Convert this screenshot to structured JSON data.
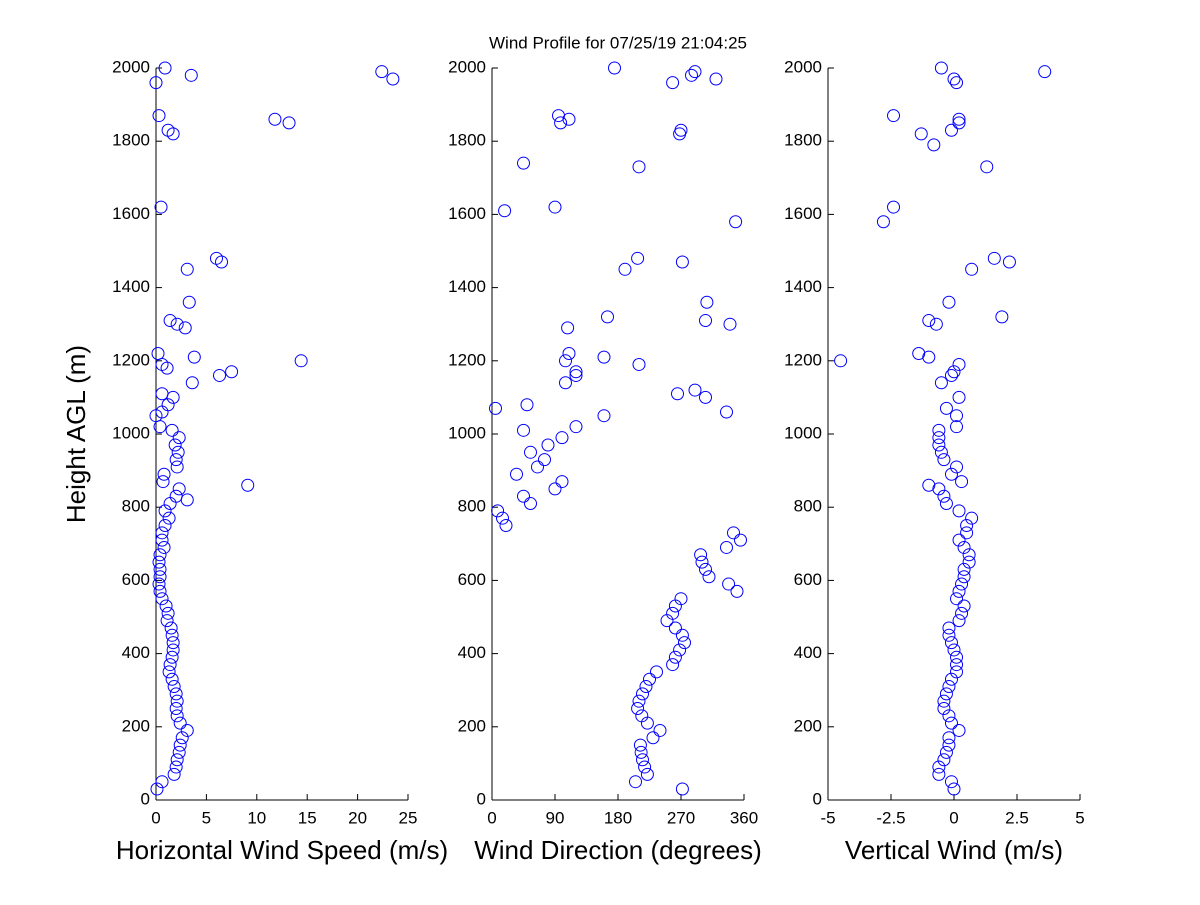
{
  "title": "Wind Profile for  07/25/19 21:04:25",
  "chart_data": [
    {
      "type": "scatter",
      "xlabel": "Horizontal Wind Speed (m/s)",
      "ylabel": "Height AGL (m)",
      "color": "#0000ff",
      "xlim": [
        0,
        25
      ],
      "xticks": [
        0,
        5,
        10,
        15,
        20,
        25
      ],
      "ylim": [
        0,
        2000
      ],
      "yticks": [
        0,
        200,
        400,
        600,
        800,
        1000,
        1200,
        1400,
        1600,
        1800,
        2000
      ],
      "x": [
        0.1,
        0.6,
        1.8,
        2.0,
        2.1,
        2.3,
        2.4,
        2.6,
        3.1,
        2.4,
        2.1,
        2.0,
        2.1,
        2.0,
        1.8,
        1.6,
        1.3,
        1.4,
        1.6,
        1.7,
        1.7,
        1.6,
        1.5,
        1.1,
        1.2,
        1.0,
        0.6,
        0.4,
        0.3,
        0.4,
        0.4,
        0.3,
        0.4,
        0.8,
        0.6,
        0.6,
        0.9,
        1.3,
        0.9,
        1.4,
        2.0,
        2.3,
        0.7,
        0.8,
        2.1,
        2.0,
        2.2,
        1.9,
        2.3,
        9.1,
        3.1,
        1.6,
        0.4,
        0.0,
        0.6,
        1.2,
        1.7,
        0.6,
        3.6,
        6.3,
        7.5,
        1.1,
        0.6,
        14.4,
        3.8,
        0.2,
        2.9,
        2.1,
        1.4,
        3.3,
        3.1,
        6.5,
        6.0,
        0.5,
        1.7,
        1.2,
        13.2,
        11.8,
        0.3,
        0.0,
        23.5,
        3.5,
        22.4,
        0.9
      ],
      "y": [
        30,
        50,
        70,
        90,
        110,
        130,
        150,
        170,
        190,
        210,
        230,
        250,
        270,
        290,
        310,
        330,
        350,
        370,
        390,
        410,
        430,
        450,
        470,
        490,
        510,
        530,
        550,
        570,
        590,
        610,
        630,
        650,
        670,
        690,
        710,
        730,
        750,
        770,
        790,
        810,
        830,
        850,
        870,
        890,
        910,
        930,
        950,
        970,
        990,
        860,
        820,
        1010,
        1020,
        1050,
        1060,
        1080,
        1100,
        1110,
        1140,
        1160,
        1170,
        1180,
        1190,
        1200,
        1210,
        1220,
        1290,
        1300,
        1310,
        1360,
        1450,
        1470,
        1480,
        1620,
        1820,
        1830,
        1850,
        1860,
        1870,
        1960,
        1970,
        1980,
        1990,
        2000
      ]
    },
    {
      "type": "scatter",
      "xlabel": "Wind Direction (degrees)",
      "color": "#0000ff",
      "xlim": [
        0,
        360
      ],
      "xticks": [
        0,
        90,
        180,
        270,
        360
      ],
      "ylim": [
        0,
        2000
      ],
      "yticks": [
        0,
        200,
        400,
        600,
        800,
        1000,
        1200,
        1400,
        1600,
        1800,
        2000
      ],
      "x": [
        272,
        205,
        222,
        218,
        215,
        213,
        212,
        230,
        240,
        222,
        214,
        208,
        210,
        215,
        220,
        225,
        235,
        258,
        262,
        268,
        275,
        272,
        262,
        250,
        258,
        262,
        270,
        350,
        338,
        310,
        305,
        300,
        298,
        335,
        355,
        345,
        20,
        15,
        8,
        55,
        45,
        90,
        100,
        35,
        65,
        75,
        55,
        80,
        100,
        45,
        120,
        160,
        335,
        5,
        50,
        305,
        265,
        290,
        105,
        120,
        120,
        210,
        105,
        160,
        110,
        108,
        340,
        305,
        165,
        307,
        190,
        272,
        208,
        348,
        18,
        90,
        210,
        45,
        268,
        270,
        98,
        110,
        95,
        258,
        320,
        285,
        290,
        175
      ],
      "y": [
        30,
        50,
        70,
        90,
        110,
        130,
        150,
        170,
        190,
        210,
        230,
        250,
        270,
        290,
        310,
        330,
        350,
        370,
        390,
        410,
        430,
        450,
        470,
        490,
        510,
        530,
        550,
        570,
        590,
        610,
        630,
        650,
        670,
        690,
        710,
        730,
        750,
        770,
        790,
        810,
        830,
        850,
        870,
        890,
        910,
        930,
        950,
        970,
        990,
        1010,
        1020,
        1050,
        1060,
        1070,
        1080,
        1100,
        1110,
        1120,
        1140,
        1160,
        1170,
        1190,
        1200,
        1210,
        1220,
        1290,
        1300,
        1310,
        1320,
        1360,
        1450,
        1470,
        1480,
        1580,
        1610,
        1620,
        1730,
        1740,
        1820,
        1830,
        1850,
        1860,
        1870,
        1960,
        1970,
        1980,
        1990,
        2000
      ]
    },
    {
      "type": "scatter",
      "xlabel": "Vertical Wind (m/s)",
      "color": "#0000ff",
      "xlim": [
        -5,
        5
      ],
      "xticks": [
        -5,
        -2.5,
        0,
        2.5,
        5
      ],
      "ylim": [
        0,
        2000
      ],
      "yticks": [
        0,
        200,
        400,
        600,
        800,
        1000,
        1200,
        1400,
        1600,
        1800,
        2000
      ],
      "x": [
        0,
        -0.1,
        -0.6,
        -0.6,
        -0.4,
        -0.3,
        -0.2,
        -0.2,
        0.2,
        -0.1,
        -0.2,
        -0.4,
        -0.4,
        -0.3,
        -0.2,
        -0.1,
        0.1,
        0.1,
        0.1,
        0,
        -0.1,
        -0.2,
        -0.2,
        0.2,
        0.3,
        0.4,
        0.1,
        0.2,
        0.3,
        0.4,
        0.4,
        0.6,
        0.6,
        0.4,
        0.2,
        0.5,
        0.5,
        0.7,
        0.2,
        -0.3,
        -0.4,
        -0.6,
        0.3,
        -0.1,
        0.1,
        -0.4,
        -0.5,
        -0.6,
        -0.6,
        -1.0,
        -0.6,
        0.1,
        0.1,
        -0.3,
        0.2,
        -0.5,
        -0.1,
        0,
        0.2,
        -4.5,
        -1.0,
        -1.4,
        -0.7,
        -1.0,
        1.9,
        -0.2,
        0.7,
        2.2,
        1.6,
        -2.8,
        -2.4,
        1.3,
        -0.8,
        -1.3,
        -0.1,
        0.2,
        0.2,
        -2.4,
        0.1,
        0,
        3.6,
        -0.5
      ],
      "y": [
        30,
        50,
        70,
        90,
        110,
        130,
        150,
        170,
        190,
        210,
        230,
        250,
        270,
        290,
        310,
        330,
        350,
        370,
        390,
        410,
        430,
        450,
        470,
        490,
        510,
        530,
        550,
        570,
        590,
        610,
        630,
        650,
        670,
        690,
        710,
        730,
        750,
        770,
        790,
        810,
        830,
        850,
        870,
        890,
        910,
        930,
        950,
        970,
        990,
        860,
        1010,
        1020,
        1050,
        1070,
        1100,
        1140,
        1160,
        1170,
        1190,
        1200,
        1210,
        1220,
        1300,
        1310,
        1320,
        1360,
        1450,
        1470,
        1480,
        1580,
        1620,
        1730,
        1790,
        1820,
        1830,
        1850,
        1860,
        1870,
        1960,
        1970,
        1990,
        2000
      ]
    }
  ]
}
